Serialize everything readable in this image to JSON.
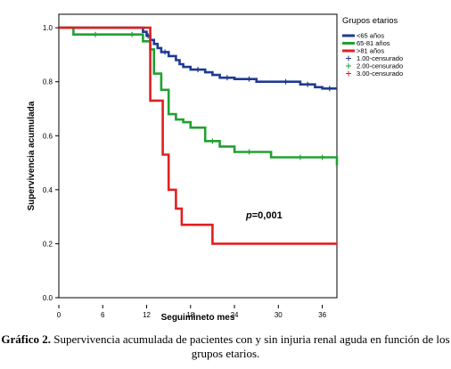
{
  "chart_data": {
    "type": "line",
    "xlabel": "Seguimineto mes",
    "ylabel": "Supervivencia acumulada",
    "xlim": [
      0,
      38
    ],
    "ylim": [
      0,
      1.05
    ],
    "xticks": [
      0,
      6,
      12,
      18,
      24,
      30,
      36
    ],
    "xtick_labels": [
      "0",
      "6",
      "12",
      "18",
      "24",
      "30",
      "36"
    ],
    "yticks": [
      0.0,
      0.2,
      0.4,
      0.6,
      0.8,
      1.0
    ],
    "ytick_labels": [
      "0.0",
      "0.2",
      "0.4",
      "0.6",
      "0.8",
      "1.0"
    ],
    "grid": false,
    "legend": {
      "title": "Grupos etarios",
      "placement": "right",
      "entries": [
        {
          "label": "<65 años",
          "color": "#1f3a93",
          "kind": "line"
        },
        {
          "label": "65-81 años",
          "color": "#22a033",
          "kind": "line"
        },
        {
          "label": ">81 años",
          "color": "#e02020",
          "kind": "line"
        },
        {
          "label": "1.00-censurado",
          "color": "#1f3a93",
          "kind": "cross"
        },
        {
          "label": "2.00-censurado",
          "color": "#22a033",
          "kind": "cross"
        },
        {
          "label": "3.00-censurado",
          "color": "#e02020",
          "kind": "cross"
        }
      ]
    },
    "annotation": {
      "prefix": "p",
      "value": "=0,001",
      "x": 25,
      "y": 0.27
    },
    "series": [
      {
        "name": "<65 años",
        "color": "#1f3a93",
        "steps": [
          [
            0,
            1.0
          ],
          [
            11.5,
            1.0
          ],
          [
            11.5,
            0.985
          ],
          [
            12,
            0.985
          ],
          [
            12,
            0.97
          ],
          [
            12.5,
            0.97
          ],
          [
            12.5,
            0.955
          ],
          [
            13,
            0.955
          ],
          [
            13,
            0.94
          ],
          [
            13.5,
            0.94
          ],
          [
            13.5,
            0.925
          ],
          [
            14,
            0.925
          ],
          [
            14,
            0.91
          ],
          [
            15,
            0.91
          ],
          [
            15,
            0.895
          ],
          [
            16,
            0.895
          ],
          [
            16,
            0.88
          ],
          [
            16.5,
            0.88
          ],
          [
            16.5,
            0.865
          ],
          [
            17,
            0.865
          ],
          [
            17,
            0.855
          ],
          [
            18,
            0.855
          ],
          [
            18,
            0.845
          ],
          [
            20,
            0.845
          ],
          [
            20,
            0.835
          ],
          [
            21,
            0.835
          ],
          [
            21,
            0.825
          ],
          [
            22,
            0.825
          ],
          [
            22,
            0.815
          ],
          [
            24,
            0.815
          ],
          [
            24,
            0.81
          ],
          [
            27,
            0.81
          ],
          [
            27,
            0.8
          ],
          [
            33,
            0.8
          ],
          [
            33,
            0.79
          ],
          [
            35,
            0.79
          ],
          [
            35,
            0.78
          ],
          [
            36,
            0.78
          ],
          [
            36,
            0.775
          ],
          [
            38,
            0.775
          ]
        ]
      },
      {
        "name": "65-81 años",
        "color": "#22a033",
        "steps": [
          [
            0,
            1.0
          ],
          [
            2,
            1.0
          ],
          [
            2,
            0.975
          ],
          [
            11.5,
            0.975
          ],
          [
            11.5,
            0.95
          ],
          [
            12.5,
            0.95
          ],
          [
            12.5,
            0.92
          ],
          [
            13,
            0.92
          ],
          [
            13,
            0.83
          ],
          [
            14,
            0.83
          ],
          [
            14,
            0.77
          ],
          [
            15,
            0.77
          ],
          [
            15,
            0.68
          ],
          [
            16,
            0.68
          ],
          [
            16,
            0.66
          ],
          [
            17,
            0.66
          ],
          [
            17,
            0.65
          ],
          [
            18,
            0.65
          ],
          [
            18,
            0.63
          ],
          [
            20,
            0.63
          ],
          [
            20,
            0.58
          ],
          [
            22,
            0.58
          ],
          [
            22,
            0.56
          ],
          [
            24,
            0.56
          ],
          [
            24,
            0.54
          ],
          [
            29,
            0.54
          ],
          [
            29,
            0.52
          ],
          [
            38,
            0.52
          ],
          [
            38,
            0.49
          ]
        ]
      },
      {
        "name": ">81 años",
        "color": "#e02020",
        "steps": [
          [
            0,
            1.0
          ],
          [
            12.5,
            1.0
          ],
          [
            12.5,
            0.73
          ],
          [
            14.2,
            0.73
          ],
          [
            14.2,
            0.53
          ],
          [
            15,
            0.53
          ],
          [
            15,
            0.4
          ],
          [
            16,
            0.4
          ],
          [
            16,
            0.33
          ],
          [
            16.8,
            0.33
          ],
          [
            16.8,
            0.27
          ],
          [
            21,
            0.27
          ],
          [
            21,
            0.2
          ],
          [
            38,
            0.2
          ]
        ]
      }
    ],
    "censored": [
      {
        "series": "<65 años",
        "points": [
          [
            12.2,
            0.97
          ],
          [
            14.5,
            0.91
          ],
          [
            19,
            0.845
          ],
          [
            23,
            0.815
          ],
          [
            26,
            0.81
          ],
          [
            31,
            0.8
          ],
          [
            34,
            0.79
          ],
          [
            37,
            0.775
          ]
        ]
      },
      {
        "series": "65-81 años",
        "points": [
          [
            5,
            0.975
          ],
          [
            10,
            0.975
          ],
          [
            21,
            0.58
          ],
          [
            26,
            0.54
          ],
          [
            33,
            0.52
          ],
          [
            36,
            0.52
          ]
        ]
      }
    ]
  },
  "caption": {
    "label": "Gráfico 2.",
    "text": "Supervivencia acumulada de pacientes con y sin injuria renal aguda en función de los grupos etarios."
  }
}
